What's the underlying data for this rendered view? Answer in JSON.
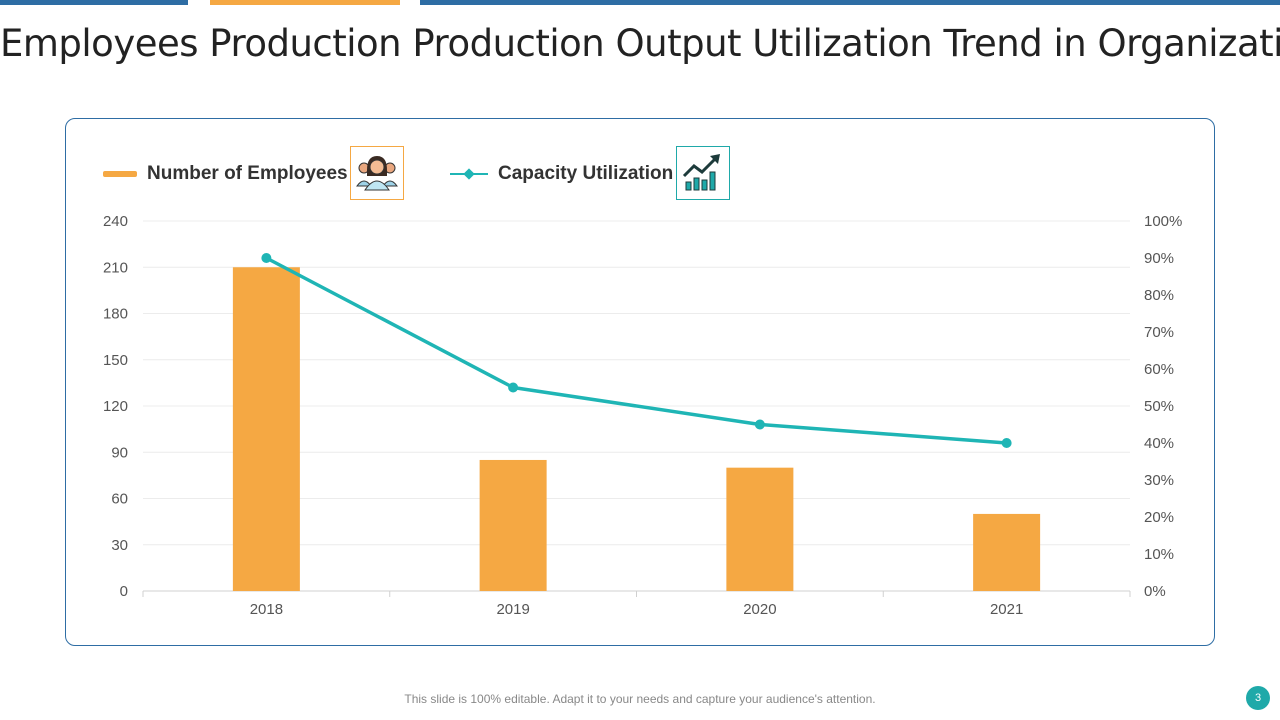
{
  "title": "Employees Production Production Output Utilization Trend in Organization",
  "legend": {
    "employees": "Number of Employees",
    "utilization": "Capacity Utilization"
  },
  "icons": {
    "employees": "people-group-icon",
    "utilization": "growth-chart-icon"
  },
  "footer": "This slide is 100% editable. Adapt it to your needs and capture your audience's attention.",
  "page_number": "3",
  "colors": {
    "bar": "#f5a843",
    "line": "#1fb5b5",
    "accent_blue": "#2e6da4",
    "teal": "#1fa9a9"
  },
  "chart_data": {
    "type": "bar",
    "categories": [
      "2018",
      "2019",
      "2020",
      "2021"
    ],
    "series": [
      {
        "name": "Number of Employees",
        "type": "bar",
        "axis": "left",
        "values": [
          210,
          85,
          80,
          50
        ]
      },
      {
        "name": "Capacity Utilization",
        "type": "line",
        "axis": "right",
        "values": [
          90,
          55,
          45,
          40
        ]
      }
    ],
    "y_left": {
      "min": 0,
      "max": 240,
      "ticks": [
        "0",
        "30",
        "60",
        "90",
        "120",
        "150",
        "180",
        "210",
        "240"
      ]
    },
    "y_right": {
      "min": 0,
      "max": 100,
      "ticks": [
        "0%",
        "10%",
        "20%",
        "30%",
        "40%",
        "50%",
        "60%",
        "70%",
        "80%",
        "90%",
        "100%"
      ]
    },
    "grid": true,
    "legend_position": "top-left"
  }
}
